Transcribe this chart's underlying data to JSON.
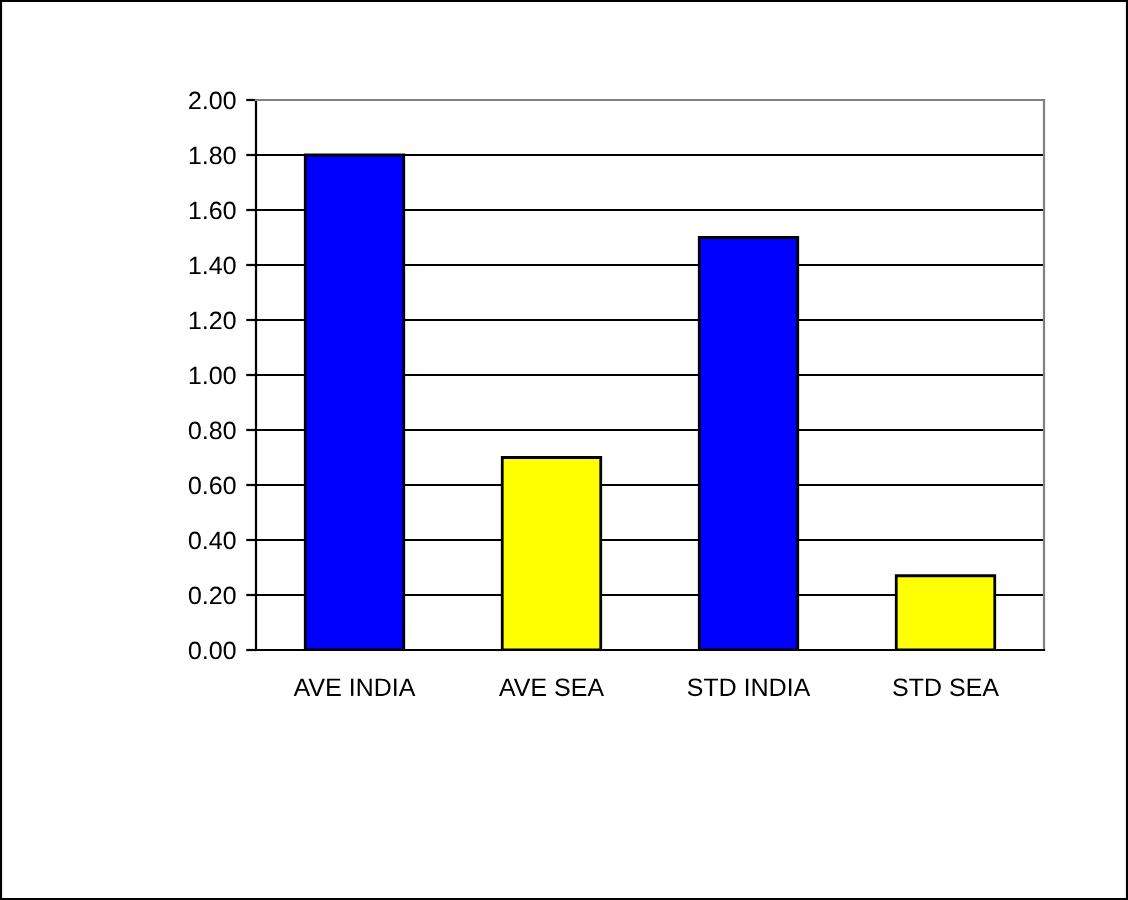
{
  "chart_data": {
    "type": "bar",
    "categories": [
      "AVE INDIA",
      "AVE SEA",
      "STD INDIA",
      "STD SEA"
    ],
    "values": [
      1.8,
      0.7,
      1.5,
      0.27
    ],
    "colors": [
      "#0000ff",
      "#ffff00",
      "#0000ff",
      "#ffff00"
    ],
    "ylim": [
      0,
      2
    ],
    "yticks": [
      {
        "value": 0,
        "label": "0.00"
      },
      {
        "value": 0.2,
        "label": "0.20"
      },
      {
        "value": 0.4,
        "label": "0.40"
      },
      {
        "value": 0.6,
        "label": "0.60"
      },
      {
        "value": 0.8,
        "label": "0.80"
      },
      {
        "value": 1.0,
        "label": "1.00"
      },
      {
        "value": 1.2,
        "label": "1.20"
      },
      {
        "value": 1.4,
        "label": "1.40"
      },
      {
        "value": 1.6,
        "label": "1.60"
      },
      {
        "value": 1.8,
        "label": "1.80"
      },
      {
        "value": 2.0,
        "label": "2.00"
      }
    ],
    "grid": "y"
  }
}
